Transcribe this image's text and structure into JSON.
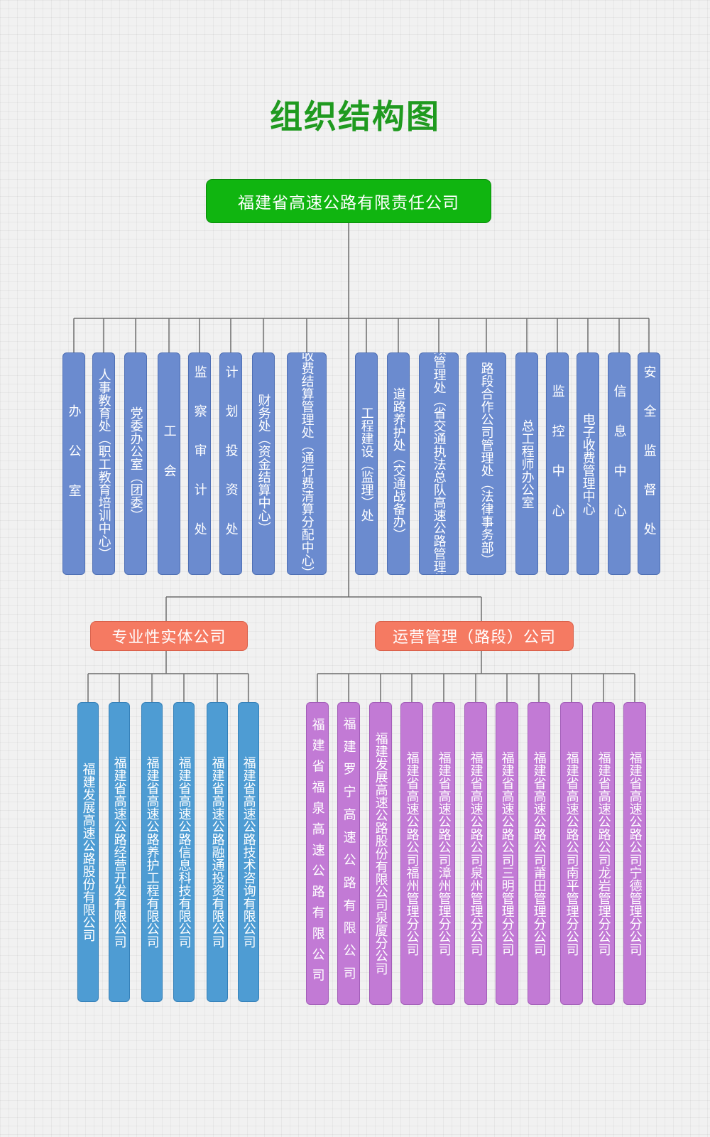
{
  "title": "组织结构图",
  "root": "福建省高速公路有限责任公司",
  "departments": [
    {
      "label": "办公室",
      "lines": [
        "办公室"
      ],
      "spaced": true
    },
    {
      "label": "人事教育处（职工教育培训中心）",
      "lines": [
        "人事教育处（职工教育培训中心）"
      ]
    },
    {
      "label": "党委办公室（团委）",
      "lines": [
        "党委办公室（团委）"
      ]
    },
    {
      "label": "工会",
      "lines": [
        "工会"
      ],
      "spaced": true
    },
    {
      "label": "监察审计处",
      "lines": [
        "监察审计处"
      ],
      "spaced": true
    },
    {
      "label": "计划投资处",
      "lines": [
        "计划投资处"
      ],
      "spaced": true
    },
    {
      "label": "财务处（资金结算中心）",
      "lines": [
        "财务处（资金结算中心）"
      ]
    },
    {
      "label": "收费结算管理处（通行费清算分配中心）",
      "lines": [
        "收费结算管理处",
        "（通行费清算分配中心）"
      ]
    },
    {
      "label": "工程建设（监理）处",
      "lines": [
        "工程建设（监理）处"
      ]
    },
    {
      "label": "道路养护处（交通战备办）",
      "lines": [
        "道路养护处（交通战备办）"
      ]
    },
    {
      "label": "路政管理处（省交通执法总队高速公路管理处）",
      "lines": [
        "路政管理处",
        "（省交通执法总队高速公路管理处）"
      ]
    },
    {
      "label": "路段合作公司管理处（法律事务部）",
      "lines": [
        "路段合作公司管理处",
        "（法律事务部）"
      ]
    },
    {
      "label": "总工程师办公室",
      "lines": [
        "总工程师办公室"
      ]
    },
    {
      "label": "监控中心",
      "lines": [
        "监控中心"
      ],
      "spaced": true
    },
    {
      "label": "电子收费管理中心",
      "lines": [
        "电子收费管理中心"
      ]
    },
    {
      "label": "信息中心",
      "lines": [
        "信息中心"
      ],
      "spaced": true
    },
    {
      "label": "安全监督处",
      "lines": [
        "安全监督处"
      ],
      "spaced": true
    }
  ],
  "entity_group": {
    "label": "专业性实体公司",
    "companies": [
      "福建发展高速公路股份有限公司",
      "福建省高速公路经营开发有限公司",
      "福建省高速公路养护工程有限公司",
      "福建省高速公路信息科技有限公司",
      "福建省高速公路融通投资有限公司",
      "福建省高速公路技术咨询有限公司"
    ]
  },
  "operation_group": {
    "label": "运营管理（路段）公司",
    "companies": [
      {
        "label": "福建省福泉高速公路有限公司",
        "spaced": true
      },
      {
        "label": "福建罗宁高速公路有限公司",
        "spaced": true
      },
      {
        "label": "福建发展高速公路股份有限公司泉厦分公司"
      },
      {
        "label": "福建省高速公路公司福州管理分公司"
      },
      {
        "label": "福建省高速公路公司漳州管理分公司"
      },
      {
        "label": "福建省高速公路公司泉州管理分公司"
      },
      {
        "label": "福建省高速公路公司三明管理分公司"
      },
      {
        "label": "福建省高速公路公司莆田管理分公司"
      },
      {
        "label": "福建省高速公路公司南平管理分公司"
      },
      {
        "label": "福建省高速公路公司龙岩管理分公司"
      },
      {
        "label": "福建省高速公路公司宁德管理分公司"
      }
    ]
  },
  "colors": {
    "root": "#10b510",
    "title": "#1f9a1f",
    "group": "#f57a62",
    "department": "#6b8bcf",
    "entity_company": "#4e9cd3",
    "operation_company": "#c27ad5",
    "connector": "#6e6e6e"
  }
}
